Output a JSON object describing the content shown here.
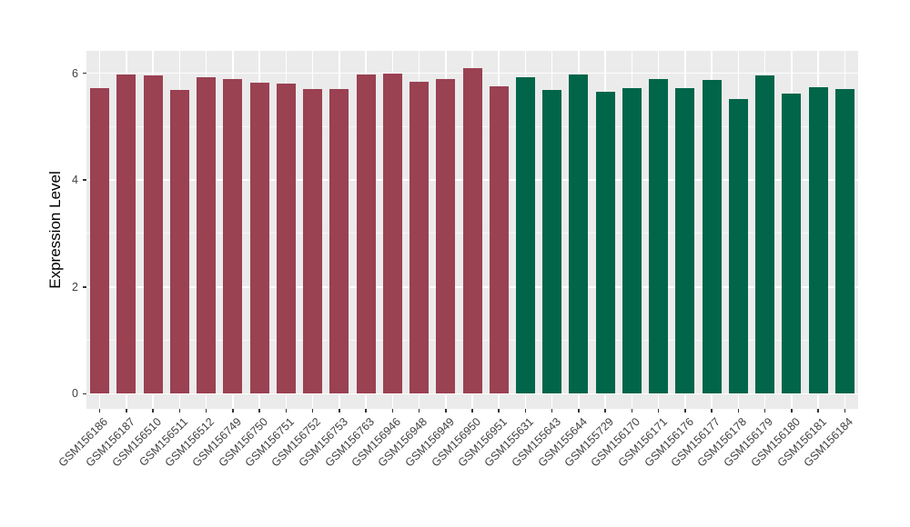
{
  "chart_data": {
    "type": "bar",
    "title": "",
    "xlabel": "",
    "ylabel": "Expression Level",
    "ylim": [
      0,
      6.42
    ],
    "yticks": [
      0,
      2,
      4,
      6
    ],
    "yticks_minor": [
      1,
      3,
      5
    ],
    "grid": true,
    "legend_position": "none",
    "panel_bg": "#EBEBEB",
    "grid_color": "#FFFFFF",
    "tick_color": "#333333",
    "group_colors": {
      "red": "#9A4152",
      "green": "#006549"
    },
    "bars": [
      {
        "label": "GSM156186",
        "value": 5.73,
        "group": "red"
      },
      {
        "label": "GSM156187",
        "value": 5.98,
        "group": "red"
      },
      {
        "label": "GSM156510",
        "value": 5.96,
        "group": "red"
      },
      {
        "label": "GSM156511",
        "value": 5.68,
        "group": "red"
      },
      {
        "label": "GSM156512",
        "value": 5.92,
        "group": "red"
      },
      {
        "label": "GSM156749",
        "value": 5.9,
        "group": "red"
      },
      {
        "label": "GSM156750",
        "value": 5.82,
        "group": "red"
      },
      {
        "label": "GSM156751",
        "value": 5.8,
        "group": "red"
      },
      {
        "label": "GSM156752",
        "value": 5.71,
        "group": "red"
      },
      {
        "label": "GSM156753",
        "value": 5.7,
        "group": "red"
      },
      {
        "label": "GSM156763",
        "value": 5.97,
        "group": "red"
      },
      {
        "label": "GSM156946",
        "value": 6.0,
        "group": "red"
      },
      {
        "label": "GSM156948",
        "value": 5.84,
        "group": "red"
      },
      {
        "label": "GSM156949",
        "value": 5.9,
        "group": "red"
      },
      {
        "label": "GSM156950",
        "value": 6.1,
        "group": "red"
      },
      {
        "label": "GSM156951",
        "value": 5.75,
        "group": "red"
      },
      {
        "label": "GSM155631",
        "value": 5.93,
        "group": "green"
      },
      {
        "label": "GSM155643",
        "value": 5.69,
        "group": "green"
      },
      {
        "label": "GSM155644",
        "value": 5.98,
        "group": "green"
      },
      {
        "label": "GSM155729",
        "value": 5.65,
        "group": "green"
      },
      {
        "label": "GSM156170",
        "value": 5.72,
        "group": "green"
      },
      {
        "label": "GSM156171",
        "value": 5.89,
        "group": "green"
      },
      {
        "label": "GSM156176",
        "value": 5.73,
        "group": "green"
      },
      {
        "label": "GSM156177",
        "value": 5.87,
        "group": "green"
      },
      {
        "label": "GSM156178",
        "value": 5.52,
        "group": "green"
      },
      {
        "label": "GSM156179",
        "value": 5.96,
        "group": "green"
      },
      {
        "label": "GSM156180",
        "value": 5.62,
        "group": "green"
      },
      {
        "label": "GSM156181",
        "value": 5.74,
        "group": "green"
      },
      {
        "label": "GSM156184",
        "value": 5.71,
        "group": "green"
      }
    ]
  }
}
